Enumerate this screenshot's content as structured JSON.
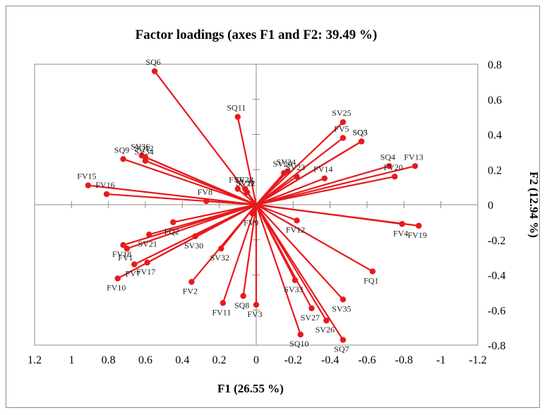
{
  "chart_data": {
    "type": "scatter",
    "title": "Factor loadings (axes F1 and F2: 39.49 %)",
    "xlabel": "F1 (26.55 %)",
    "ylabel": "F2 (12.94 %)",
    "xlim": [
      1.2,
      -1.2
    ],
    "ylim": [
      -0.8,
      0.8
    ],
    "x_reversed": true,
    "x_ticks": [
      1.2,
      1,
      0.8,
      0.6,
      0.4,
      0.2,
      0,
      -0.2,
      -0.4,
      -0.6,
      -0.8,
      -1,
      -1.2
    ],
    "y_ticks": [
      0.8,
      0.6,
      0.4,
      0.2,
      0,
      -0.2,
      -0.4,
      -0.6,
      -0.8
    ],
    "x_tick_labels": [
      "1.2",
      "1",
      "0.8",
      "0.6",
      "0.4",
      "0.2",
      "0",
      "-0.2",
      "-0.4",
      "-0.6",
      "-0.8",
      "-1",
      "-1.2"
    ],
    "y_tick_labels": [
      "0.8",
      "0.6",
      "0.4",
      "0.2",
      "0",
      "-0.2",
      "-0.4",
      "-0.6",
      "-0.8"
    ],
    "y_axis_side": "right",
    "vectors_from_origin": true,
    "grid": false,
    "legend": "none",
    "color": "#e8191c",
    "points": [
      {
        "label": "SQ6",
        "x": 0.55,
        "y": 0.76
      },
      {
        "label": "SQ11",
        "x": 0.1,
        "y": 0.5
      },
      {
        "label": "SV25",
        "x": -0.47,
        "y": 0.47
      },
      {
        "label": "FV5",
        "x": -0.47,
        "y": 0.38
      },
      {
        "label": "SQ3",
        "x": -0.57,
        "y": 0.36
      },
      {
        "label": "SQ5",
        "x": -0.57,
        "y": 0.36
      },
      {
        "label": "SQ4",
        "x": -0.72,
        "y": 0.22
      },
      {
        "label": "FV13",
        "x": -0.86,
        "y": 0.22
      },
      {
        "label": "FV20",
        "x": -0.75,
        "y": 0.16
      },
      {
        "label": "SV36",
        "x": 0.62,
        "y": 0.28
      },
      {
        "label": "SQ12",
        "x": 0.6,
        "y": 0.27
      },
      {
        "label": "SV34",
        "x": 0.6,
        "y": 0.25
      },
      {
        "label": "SQ9",
        "x": 0.72,
        "y": 0.26
      },
      {
        "label": "SV24",
        "x": -0.17,
        "y": 0.19
      },
      {
        "label": "SV29",
        "x": -0.15,
        "y": 0.18
      },
      {
        "label": "SV23",
        "x": -0.22,
        "y": 0.16
      },
      {
        "label": "FV14",
        "x": -0.37,
        "y": 0.15
      },
      {
        "label": "FV6",
        "x": 0.1,
        "y": 0.09
      },
      {
        "label": "SV28",
        "x": 0.06,
        "y": 0.09
      },
      {
        "label": "SV11",
        "x": 0.05,
        "y": 0.07
      },
      {
        "label": "SV22",
        "x": 0.05,
        "y": 0.07
      },
      {
        "label": "FV15",
        "x": 0.91,
        "y": 0.11
      },
      {
        "label": "FV16",
        "x": 0.81,
        "y": 0.06
      },
      {
        "label": "FV8",
        "x": 0.27,
        "y": 0.02
      },
      {
        "label": "FV4",
        "x": -0.79,
        "y": -0.11
      },
      {
        "label": "FV19",
        "x": -0.88,
        "y": -0.12
      },
      {
        "label": "FV9",
        "x": 0.02,
        "y": -0.05
      },
      {
        "label": "FV12",
        "x": -0.22,
        "y": -0.09
      },
      {
        "label": "FQ2",
        "x": 0.45,
        "y": -0.1
      },
      {
        "label": "SV21",
        "x": 0.58,
        "y": -0.17
      },
      {
        "label": "SV30",
        "x": 0.33,
        "y": -0.18
      },
      {
        "label": "FV18",
        "x": 0.72,
        "y": -0.23
      },
      {
        "label": "FV1",
        "x": 0.7,
        "y": -0.25
      },
      {
        "label": "FV7",
        "x": 0.66,
        "y": -0.34
      },
      {
        "label": "FV17",
        "x": 0.59,
        "y": -0.33
      },
      {
        "label": "SV32",
        "x": 0.19,
        "y": -0.25
      },
      {
        "label": "FQ1",
        "x": -0.63,
        "y": -0.38
      },
      {
        "label": "FV10",
        "x": 0.75,
        "y": -0.42
      },
      {
        "label": "FV2",
        "x": 0.35,
        "y": -0.44
      },
      {
        "label": "SV33",
        "x": -0.21,
        "y": -0.43
      },
      {
        "label": "SV35",
        "x": -0.47,
        "y": -0.54
      },
      {
        "label": "FV11",
        "x": 0.18,
        "y": -0.56
      },
      {
        "label": "FV3",
        "x": 0.0,
        "y": -0.57
      },
      {
        "label": "SQ8",
        "x": 0.07,
        "y": -0.52
      },
      {
        "label": "SV27",
        "x": -0.3,
        "y": -0.59
      },
      {
        "label": "SV26",
        "x": -0.38,
        "y": -0.66
      },
      {
        "label": "SQ10",
        "x": -0.24,
        "y": -0.74
      },
      {
        "label": "SQ7",
        "x": -0.47,
        "y": -0.77
      }
    ]
  }
}
